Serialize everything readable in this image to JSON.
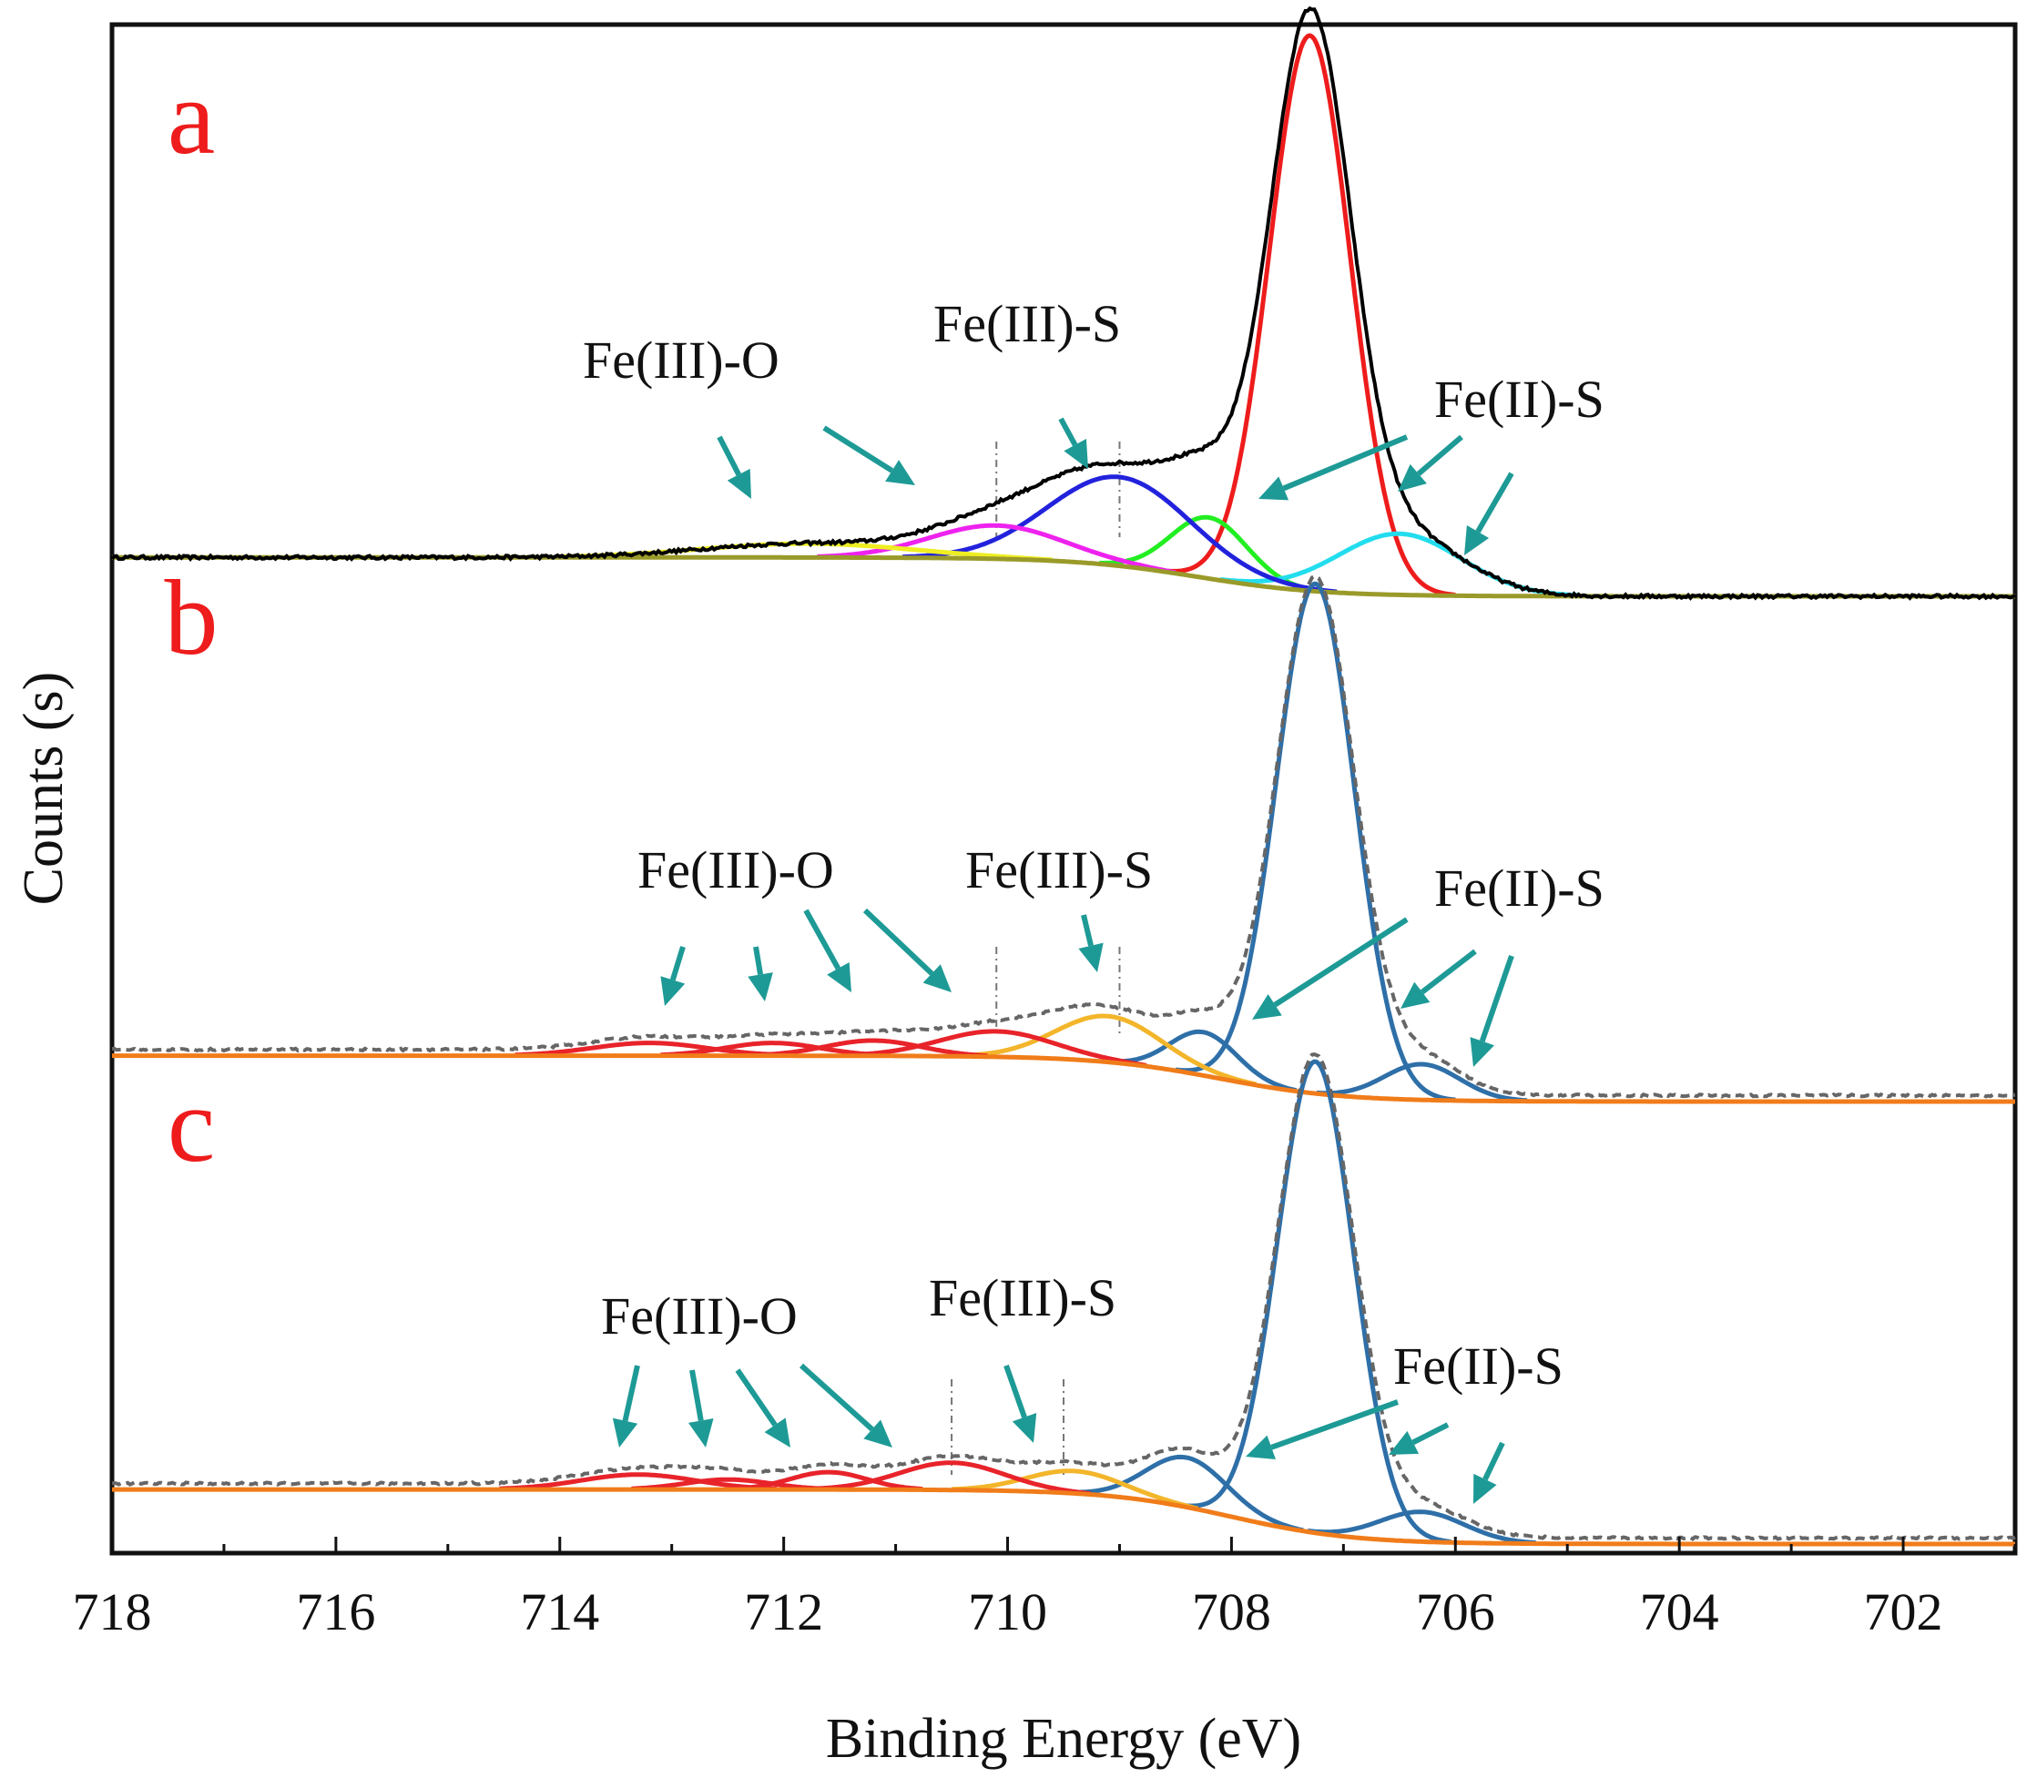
{
  "chart_data": {
    "type": "line",
    "title": "",
    "xlabel": "Binding Energy (eV)",
    "ylabel": "Counts (s)",
    "xlim": [
      718,
      701
    ],
    "x_reversed": true,
    "x_ticks": [
      "718",
      "716",
      "714",
      "712",
      "710",
      "708",
      "706",
      "704",
      "702"
    ],
    "y_ticks_shown": false,
    "colors": {
      "panel_letter": "#ee1c1c",
      "arrow": "#1e9a96",
      "a_envelope": "#000000",
      "a_background": "#9a9a2a",
      "b_envelope": "#666666",
      "b_background": "#f07c1a",
      "b_fe2": "#2e6fa8",
      "b_fe3s": "#f3b52a",
      "b_fe3o": "#e8232a"
    },
    "panels": [
      {
        "letter": "a",
        "baseline": {
          "high": 0.07,
          "low": 0.0,
          "center": 708.3,
          "width": 0.55
        },
        "envelope_noise": 0.006,
        "components": [
          {
            "name": "Fe(II)-S main",
            "center": 707.3,
            "amplitude": 1.0,
            "fwhm": 0.85,
            "color": "#ee1c1c"
          },
          {
            "name": "Fe(II)-S",
            "center": 708.2,
            "amplitude": 0.11,
            "fwhm": 0.8,
            "color": "#22ee22"
          },
          {
            "name": "Fe(II)-S",
            "center": 706.5,
            "amplitude": 0.11,
            "fwhm": 1.3,
            "color": "#22ddee"
          },
          {
            "name": "Fe(III)-S",
            "center": 709.0,
            "amplitude": 0.16,
            "fwhm": 1.5,
            "color": "#2222dd"
          },
          {
            "name": "Fe(III)-O",
            "center": 710.1,
            "amplitude": 0.06,
            "fwhm": 1.4,
            "color": "#ee22ee"
          },
          {
            "name": "Fe(III)-O",
            "center": 711.8,
            "amplitude": 0.025,
            "fwhm": 2.2,
            "color": "#eeee22"
          }
        ],
        "labels": {
          "fe3o": "Fe(III)-O",
          "fe3s": "Fe(III)-S",
          "fe2s": "Fe(II)-S"
        },
        "marker_lines": [
          710.1,
          709.0
        ]
      },
      {
        "letter": "b",
        "baseline": {
          "high": 0.09,
          "low": 0.0,
          "center": 708.1,
          "width": 0.55
        },
        "envelope_noise": 0.004,
        "components": [
          {
            "name": "Fe(II)-S main",
            "center": 707.25,
            "amplitude": 1.0,
            "fwhm": 0.82
          },
          {
            "name": "Fe(II)-S",
            "center": 708.25,
            "amplitude": 0.085,
            "fwhm": 0.7
          },
          {
            "name": "Fe(II)-S",
            "center": 706.3,
            "amplitude": 0.07,
            "fwhm": 0.8
          },
          {
            "name": "Fe(III)-S",
            "center": 709.1,
            "amplitude": 0.09,
            "fwhm": 1.1
          },
          {
            "name": "Fe(III)-O",
            "center": 710.1,
            "amplitude": 0.05,
            "fwhm": 1.2
          },
          {
            "name": "Fe(III)-O",
            "center": 711.2,
            "amplitude": 0.03,
            "fwhm": 1.0
          },
          {
            "name": "Fe(III)-O",
            "center": 712.1,
            "amplitude": 0.025,
            "fwhm": 1.0
          },
          {
            "name": "Fe(III)-O",
            "center": 713.2,
            "amplitude": 0.025,
            "fwhm": 1.2
          }
        ],
        "labels": {
          "fe3o": "Fe(III)-O",
          "fe3s": "Fe(III)-S",
          "fe2s": "Fe(II)-S"
        },
        "marker_lines": [
          710.1,
          709.0
        ]
      },
      {
        "letter": "c",
        "baseline": {
          "high": 0.11,
          "low": 0.0,
          "center": 708.0,
          "width": 0.55
        },
        "envelope_noise": 0.004,
        "components": [
          {
            "name": "Fe(II)-S main",
            "center": 707.25,
            "amplitude": 0.95,
            "fwhm": 0.8
          },
          {
            "name": "Fe(II)-S",
            "center": 708.4,
            "amplitude": 0.1,
            "fwhm": 0.85
          },
          {
            "name": "Fe(II)-S",
            "center": 706.3,
            "amplitude": 0.06,
            "fwhm": 0.9
          },
          {
            "name": "Fe(III)-S",
            "center": 709.4,
            "amplitude": 0.045,
            "fwhm": 1.0
          },
          {
            "name": "Fe(III)-O",
            "center": 710.5,
            "amplitude": 0.055,
            "fwhm": 1.1
          },
          {
            "name": "Fe(III)-O",
            "center": 711.6,
            "amplitude": 0.035,
            "fwhm": 0.8
          },
          {
            "name": "Fe(III)-O",
            "center": 712.5,
            "amplitude": 0.02,
            "fwhm": 0.9
          },
          {
            "name": "Fe(III)-O",
            "center": 713.3,
            "amplitude": 0.03,
            "fwhm": 1.2
          }
        ],
        "labels": {
          "fe3o": "Fe(III)-O",
          "fe3s": "Fe(III)-S",
          "fe2s": "Fe(II)-S"
        },
        "marker_lines": [
          710.5,
          709.5
        ]
      }
    ]
  }
}
